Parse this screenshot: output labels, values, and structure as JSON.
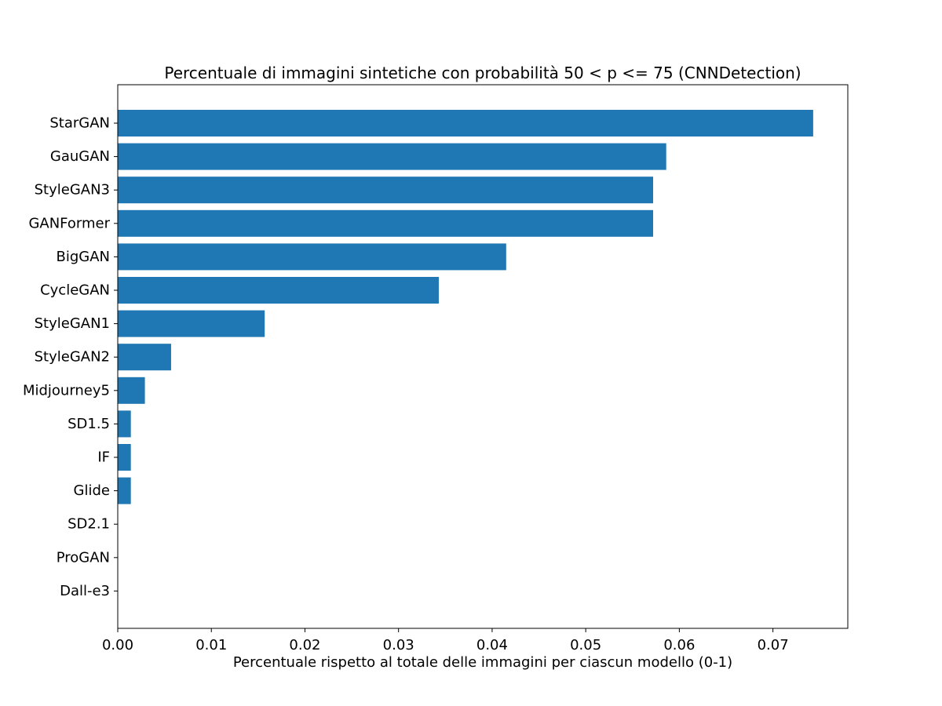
{
  "chart_data": {
    "type": "bar",
    "orientation": "horizontal",
    "title": "Percentuale di immagini sintetiche con probabilità 50 < p <= 75 (CNNDetection)",
    "xlabel": "Percentuale rispetto al totale delle immagini per ciascun modello (0-1)",
    "ylabel": "",
    "xlim": [
      0,
      0.078
    ],
    "xticks": [
      "0.00",
      "0.01",
      "0.02",
      "0.03",
      "0.04",
      "0.05",
      "0.06",
      "0.07"
    ],
    "xtick_values": [
      0,
      0.01,
      0.02,
      0.03,
      0.04,
      0.05,
      0.06,
      0.07
    ],
    "grid": false,
    "legend": "none",
    "bar_color": "#1f77b4",
    "categories": [
      "StarGAN",
      "GauGAN",
      "StyleGAN3",
      "GANFormer",
      "BigGAN",
      "CycleGAN",
      "StyleGAN1",
      "StyleGAN2",
      "Midjourney5",
      "SD1.5",
      "IF",
      "Glide",
      "SD2.1",
      "ProGAN",
      "Dall-e3"
    ],
    "values": [
      0.0743,
      0.0586,
      0.0572,
      0.0572,
      0.0415,
      0.0343,
      0.0157,
      0.0057,
      0.0029,
      0.0014,
      0.0014,
      0.0014,
      0,
      0,
      0
    ]
  }
}
